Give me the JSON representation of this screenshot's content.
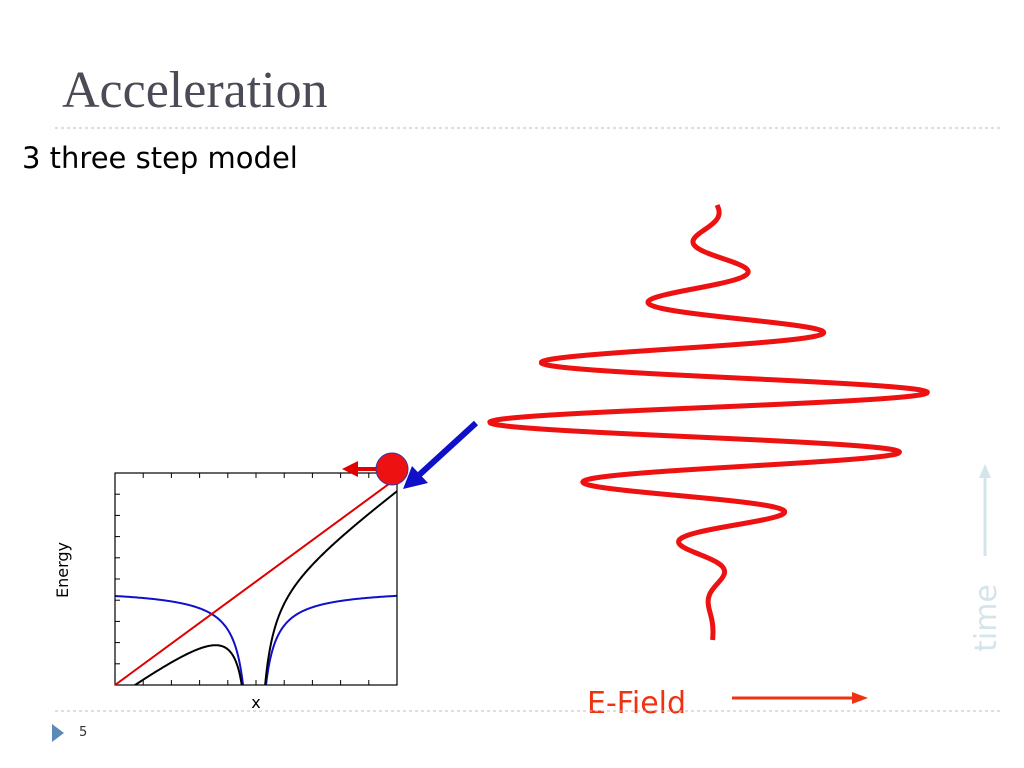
{
  "header": {
    "title": "Acceleration",
    "subtitle": "3 three step model"
  },
  "plot": {
    "y_label": "Energy",
    "x_label": "x"
  },
  "labels": {
    "field": "E-Field",
    "time": "time"
  },
  "footer": {
    "slide_number": "5"
  }
}
